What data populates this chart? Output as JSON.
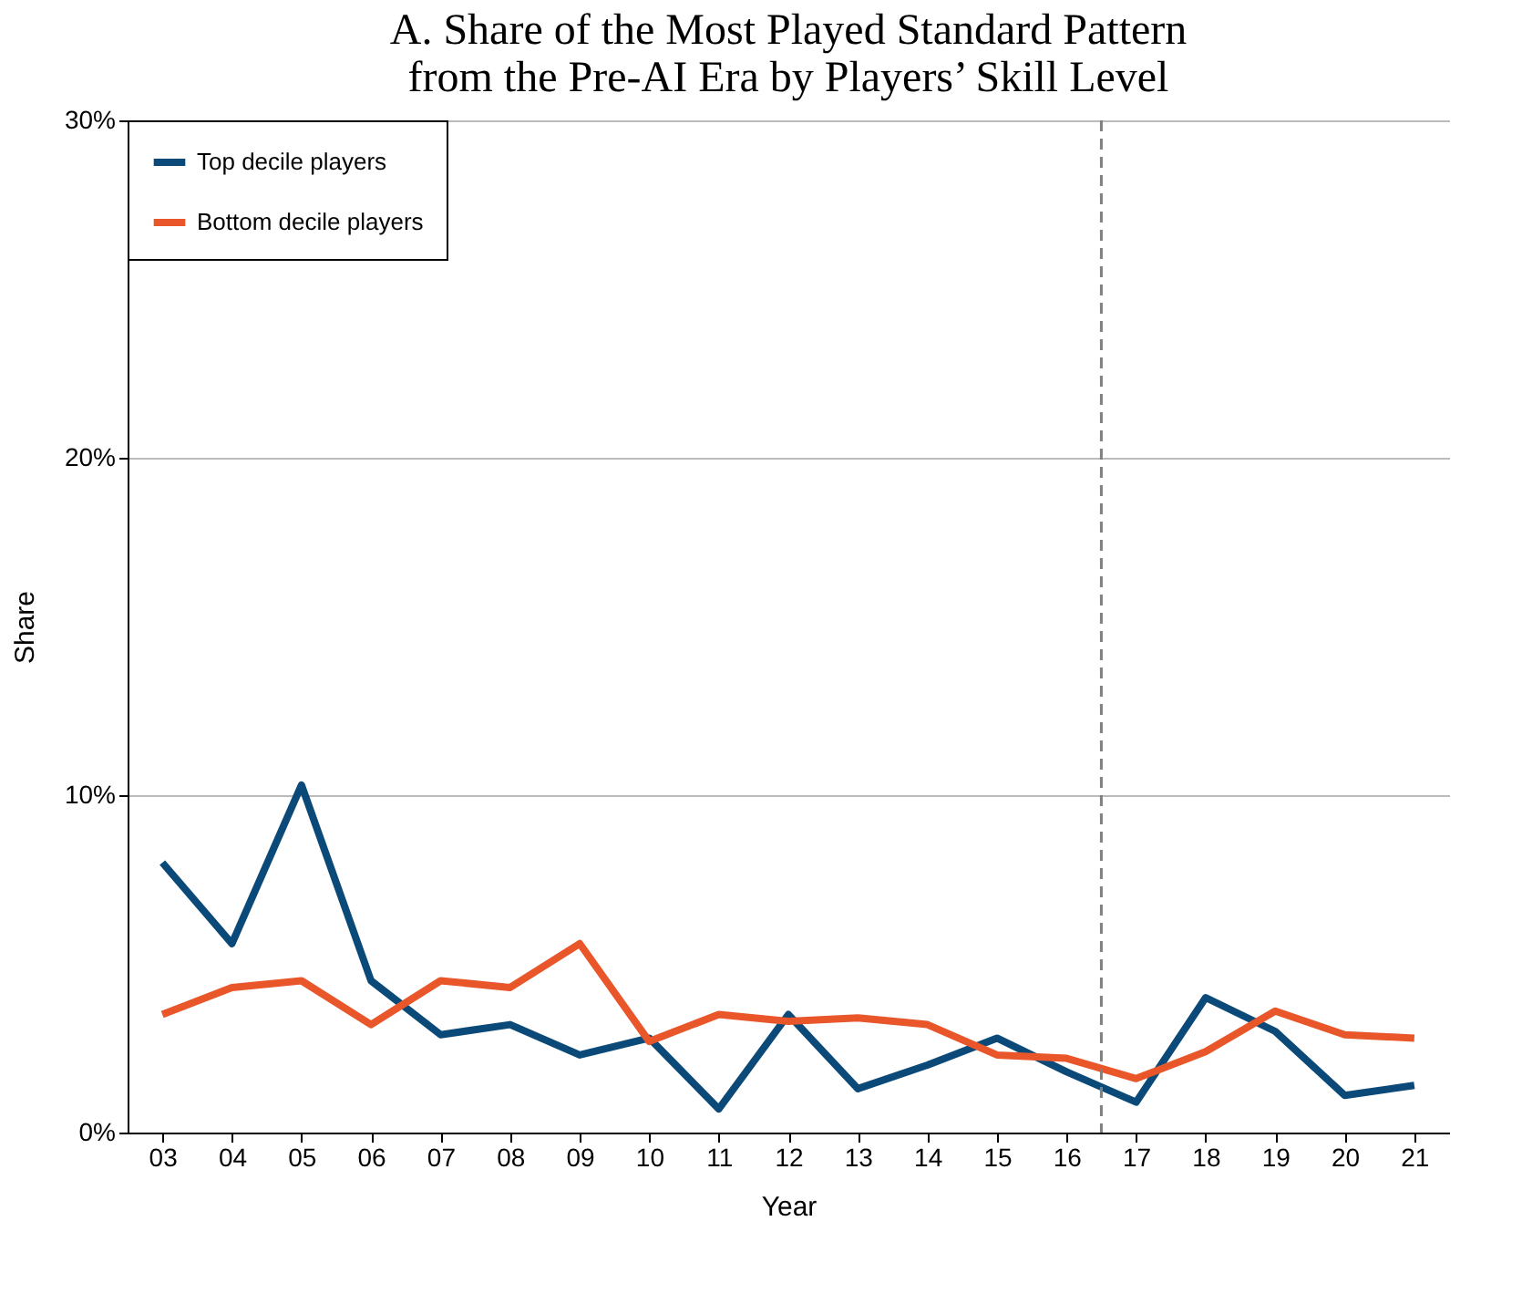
{
  "chart_data": {
    "type": "line",
    "title": "A. Share of the Most Played Standard Pattern\nfrom the Pre-AI Era by Players’ Skill Level",
    "xlabel": "Year",
    "ylabel": "Share",
    "x": [
      3,
      4,
      5,
      6,
      7,
      8,
      9,
      10,
      11,
      12,
      13,
      14,
      15,
      16,
      17,
      18,
      19,
      20,
      21
    ],
    "xlim": [
      2.5,
      21.5
    ],
    "xticks": [
      {
        "value": 3,
        "label": "03"
      },
      {
        "value": 4,
        "label": "04"
      },
      {
        "value": 5,
        "label": "05"
      },
      {
        "value": 6,
        "label": "06"
      },
      {
        "value": 7,
        "label": "07"
      },
      {
        "value": 8,
        "label": "08"
      },
      {
        "value": 9,
        "label": "09"
      },
      {
        "value": 10,
        "label": "10"
      },
      {
        "value": 11,
        "label": "11"
      },
      {
        "value": 12,
        "label": "12"
      },
      {
        "value": 13,
        "label": "13"
      },
      {
        "value": 14,
        "label": "14"
      },
      {
        "value": 15,
        "label": "15"
      },
      {
        "value": 16,
        "label": "16"
      },
      {
        "value": 17,
        "label": "17"
      },
      {
        "value": 18,
        "label": "18"
      },
      {
        "value": 19,
        "label": "19"
      },
      {
        "value": 20,
        "label": "20"
      },
      {
        "value": 21,
        "label": "21"
      }
    ],
    "ylim": [
      0,
      30
    ],
    "yticks": [
      {
        "value": 0,
        "label": "0%"
      },
      {
        "value": 10,
        "label": "10%"
      },
      {
        "value": 20,
        "label": "20%"
      },
      {
        "value": 30,
        "label": "30%"
      }
    ],
    "series": [
      {
        "name": "Top decile players",
        "color": "#0b4a78",
        "values": [
          8.0,
          5.6,
          10.3,
          4.5,
          2.9,
          3.2,
          2.3,
          2.8,
          0.7,
          3.5,
          1.3,
          2.0,
          2.8,
          1.8,
          0.9,
          4.0,
          3.0,
          1.1,
          1.4
        ]
      },
      {
        "name": "Bottom decile players",
        "color": "#e8562a",
        "values": [
          3.5,
          4.3,
          4.5,
          3.2,
          4.5,
          4.3,
          5.6,
          2.7,
          3.5,
          3.3,
          3.4,
          3.2,
          2.3,
          2.2,
          1.6,
          2.4,
          3.6,
          2.9,
          2.8
        ]
      }
    ],
    "ref_lines": [
      {
        "axis": "x",
        "value": 16.5,
        "color": "#808080",
        "line_style": "dashed"
      }
    ],
    "grid": "y",
    "legend": "top left",
    "marker": "none",
    "line_style": "solid"
  }
}
